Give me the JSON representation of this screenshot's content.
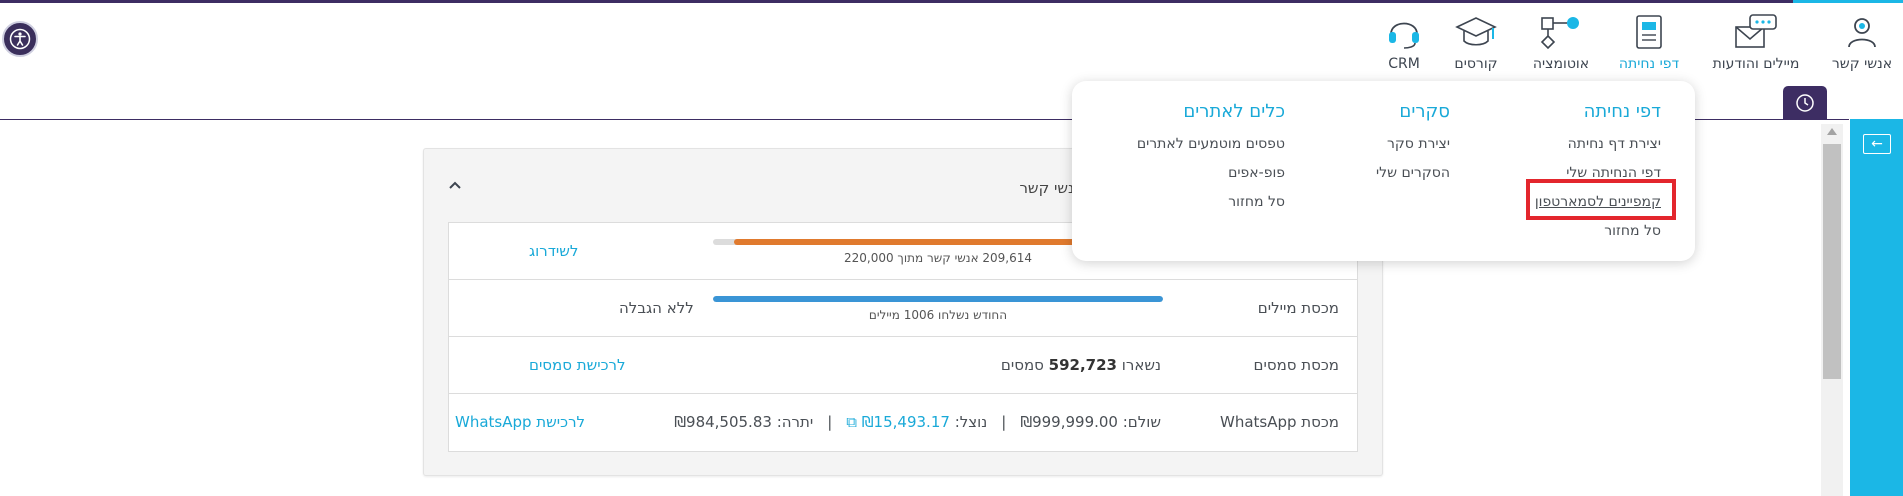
{
  "nav": {
    "items": [
      {
        "label": "אנשי קשר",
        "icon": "person-icon"
      },
      {
        "label": "מיילים והודעות",
        "icon": "envelope-chat-icon"
      },
      {
        "label": "דפי נחיתה",
        "icon": "landing-page-icon",
        "active": true
      },
      {
        "label": "אוטומציה",
        "icon": "flowchart-icon"
      },
      {
        "label": "קורסים",
        "icon": "graduation-cap-icon"
      },
      {
        "label": "CRM",
        "icon": "headset-icon"
      }
    ]
  },
  "dropdown": {
    "columns": [
      {
        "heading": "דפי נחיתה",
        "items": [
          "יצירת דף נחיתה",
          "דפי הנחיתה שלי",
          "קמפיינים לסמארטפון",
          "סל מחזור"
        ]
      },
      {
        "heading": "סקרים",
        "items": [
          "יצירת סקר",
          "הסקרים שלי"
        ]
      },
      {
        "heading": "כלים לאתרים",
        "items": [
          "טפסים מוטמעים לאתרים",
          "פופ-אפים",
          "סל מחזור"
        ]
      }
    ],
    "highlighted": "קמפיינים לסמארטפון"
  },
  "card": {
    "title": "אנשי קשר",
    "rows": [
      {
        "name": "",
        "bar_caption": "209,614 אנשי קשר מתוך 220,000",
        "progress": 0.953,
        "bar_color": "#e07a2e",
        "link": "לשידרוג"
      },
      {
        "name": "מכסת מיילים",
        "bar_caption": "החודש נשלחו 1006 מיילים",
        "progress": 1.0,
        "bar_color": "#3a95d6",
        "plain": "ללא הגבלה"
      },
      {
        "name": "מכסת סמסים",
        "prefix": "נשארו",
        "amount": "592,723",
        "suffix": "סמסים",
        "link": "לרכישת סמסים"
      },
      {
        "name": "מכסת WhatsApp",
        "paid": "שולם: ₪999,999.00",
        "used_label": "נוצל:",
        "used_value": "₪15,493.17",
        "balance": "יתרה: ₪984,505.83",
        "separator": "|",
        "link": "לרכישת WhatsApp"
      }
    ]
  },
  "colors": {
    "brand_purple": "#3d2d63",
    "accent_blue": "#19a9d8",
    "highlight_red": "#e3262d"
  }
}
